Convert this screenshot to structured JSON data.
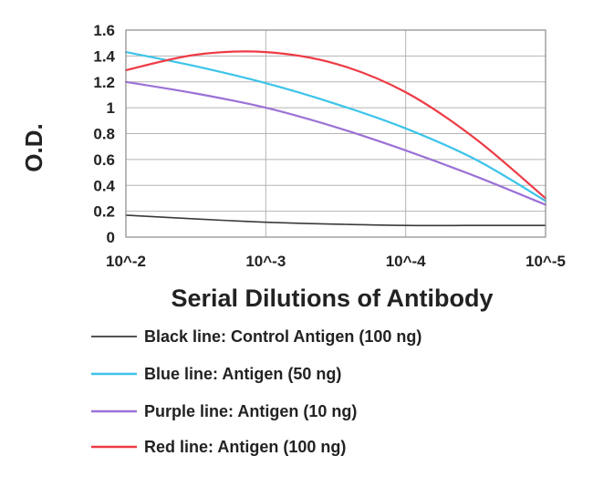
{
  "chart_data": {
    "type": "line",
    "xlabel": "Serial Dilutions of Antibody",
    "ylabel": "O.D.",
    "x_ticks": [
      "10^-2",
      "10^-3",
      "10^-4",
      "10^-5"
    ],
    "y_ticks": [
      "0",
      "0.2",
      "0.4",
      "0.6",
      "0.8",
      "1",
      "1.2",
      "1.4",
      "1.6"
    ],
    "xlim": [
      -2,
      -5
    ],
    "ylim": [
      0,
      1.6
    ],
    "grid": true,
    "legend_position": "bottom",
    "series": [
      {
        "name": "Black line: Control Antigen (100 ng)",
        "color": "#3a3a3a",
        "x": [
          -2,
          -2.5,
          -3,
          -3.5,
          -4,
          -4.5,
          -5
        ],
        "y": [
          0.17,
          0.14,
          0.115,
          0.1,
          0.09,
          0.09,
          0.09
        ]
      },
      {
        "name": "Blue line: Antigen (50 ng)",
        "color": "#3cc4ea",
        "x": [
          -2,
          -2.5,
          -3,
          -3.5,
          -4,
          -4.5,
          -5
        ],
        "y": [
          1.43,
          1.32,
          1.19,
          1.03,
          0.84,
          0.6,
          0.28
        ]
      },
      {
        "name": "Purple line: Antigen (10 ng)",
        "color": "#9b72d6",
        "x": [
          -2,
          -2.5,
          -3,
          -3.5,
          -4,
          -4.5,
          -5
        ],
        "y": [
          1.2,
          1.11,
          1.0,
          0.85,
          0.67,
          0.47,
          0.25
        ]
      },
      {
        "name": "Red line: Antigen (100 ng)",
        "color": "#ee3b45",
        "x": [
          -2,
          -2.5,
          -3,
          -3.5,
          -4,
          -4.5,
          -5
        ],
        "y": [
          1.29,
          1.41,
          1.43,
          1.34,
          1.12,
          0.76,
          0.3
        ]
      }
    ]
  }
}
